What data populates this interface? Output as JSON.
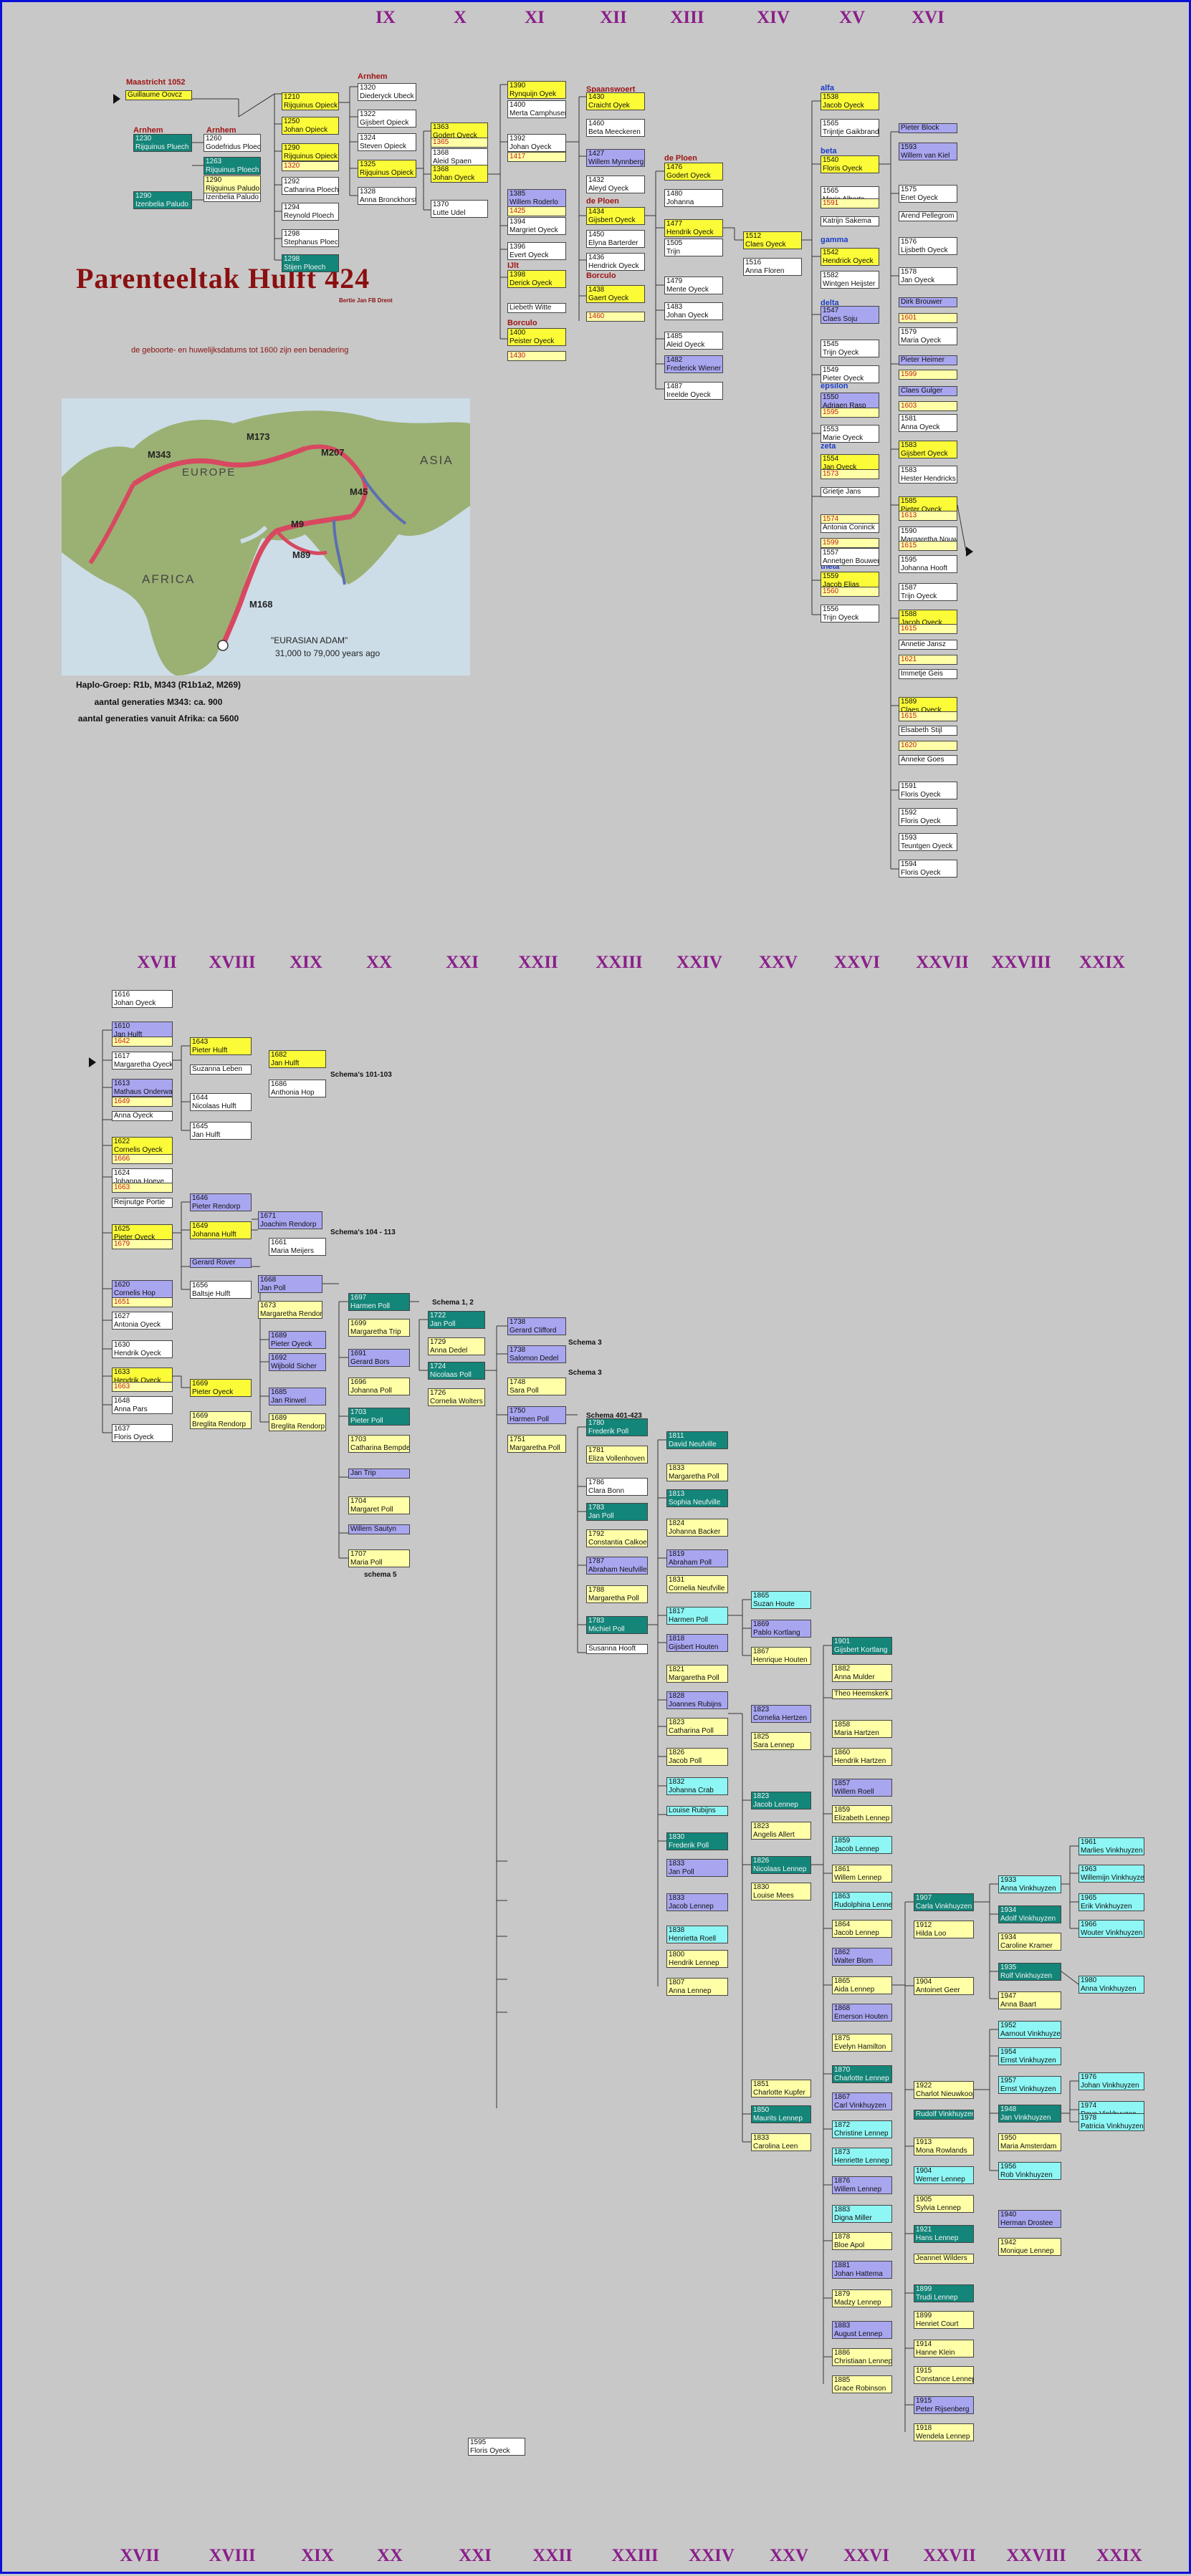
{
  "title": "Parenteeltak Hulft 424",
  "subtitle": "Bertie Jan FB Drent",
  "caption": "de geboorte- en huwelijksdatums tot 1600 zijn een benadering",
  "map": {
    "labels": {
      "europe": "EUROPE",
      "asia": "ASIA",
      "africa": "AFRICA",
      "m343": "M343",
      "m173": "M173",
      "m207": "M207",
      "m45": "M45",
      "m9": "M9",
      "m89": "M89",
      "m168": "M168",
      "adam": "\"EURASIAN ADAM\"",
      "adam_age": "31,000 to 79,000 years ago"
    }
  },
  "info": {
    "line1": "Haplo-Groep: R1b, M343 (R1b1a2, M269)",
    "line2": "aantal generaties M343: ca. 900",
    "line3": "aantal generaties vanuit Afrika: ca 5600"
  },
  "generations_top": [
    "IX",
    "X",
    "XI",
    "XII",
    "XIII",
    "XIV",
    "XV",
    "XVI"
  ],
  "generations_mid": [
    "XVII",
    "XVIII",
    "XIX",
    "XX",
    "XXI",
    "XXII",
    "XXIII",
    "XXIV",
    "XXV",
    "XXVI",
    "XXVII",
    "XXVIII",
    "XXIX"
  ],
  "generations_bottom": [
    "XVII",
    "XVIII",
    "XIX",
    "XX",
    "XXI",
    "XXII",
    "XXIII",
    "XXIV",
    "XXV",
    "XXVI",
    "XXVII",
    "XXVIII",
    "XXIX"
  ],
  "place_labels": {
    "maastricht": "Maastricht 1052",
    "arnhem1": "Arnhem",
    "arnhem2": "Arnhem",
    "arnhem3": "Arnhem",
    "spaanswoert": "Spaanswoert",
    "de_ploen1": "de Ploen",
    "de_ploen2": "de Ploen",
    "ijlt": "IJlt",
    "borculo1": "Borculo",
    "borculo2": "Borculo"
  },
  "greek_labels": {
    "alfa": "alfa",
    "beta": "beta",
    "gamma": "gamma",
    "delta": "delta",
    "epsilon": "epsilon",
    "zeta": "zeta",
    "theta": "theta"
  },
  "schemas": {
    "s1": "Schema's 101-103",
    "s2": "Schema's 104 - 113",
    "s3": "Schema 1, 2",
    "s4": "Schema 3",
    "s5": "Schema 3",
    "s6": "Schema 401-423",
    "s7": "schema 5"
  },
  "boxes_top": [
    {
      "y": "",
      "n": "Guillaume Oovcz"
    },
    {
      "y": "1210",
      "n": "Rijquinus Opieck"
    },
    {
      "y": "1250",
      "n": "Johan Opieck"
    },
    {
      "y": "1290",
      "n": "Rijquinus Opieck"
    },
    {
      "y": "1320",
      "n": ""
    },
    {
      "y": "1230",
      "n": "Rijquinus Pluech"
    },
    {
      "y": "1260",
      "n": "Godefridus Ploech"
    },
    {
      "y": "1263",
      "n": "Rijquinus Ploech"
    },
    {
      "y": "1290",
      "n": "Izenbelia Paludo"
    },
    {
      "y": "1268",
      "n": "Izenbelia Paludo"
    },
    {
      "y": "1290",
      "n": "Rijquinus Paludo"
    },
    {
      "y": "1292",
      "n": "Catharina Ploech"
    },
    {
      "y": "1294",
      "n": "Reynold Ploech"
    },
    {
      "y": "1298",
      "n": "Stephanus Ploech"
    },
    {
      "y": "1298",
      "n": "Stijen Ploech"
    },
    {
      "y": "1320",
      "n": "Diederyck Ubeck"
    },
    {
      "y": "1322",
      "n": "Gijsbert Opieck"
    },
    {
      "y": "1324",
      "n": "Steven Opieck"
    },
    {
      "y": "1325",
      "n": "Rijquinus Opieck"
    },
    {
      "y": "1328",
      "n": "Anna Bronckhorst"
    },
    {
      "y": "1363",
      "n": "Godert Oyeck"
    },
    {
      "y": "1365",
      "n": ""
    },
    {
      "y": "1368",
      "n": "Aleid Spaen"
    },
    {
      "y": "1368",
      "n": "Johan Oyeck"
    },
    {
      "y": "1370",
      "n": "Lutte Udel"
    },
    {
      "y": "1390",
      "n": "Rynquijn Oyek"
    },
    {
      "y": "1400",
      "n": "Merta Camphuser"
    },
    {
      "y": "1417",
      "n": ""
    },
    {
      "y": "1392",
      "n": "Johan Oyeck"
    },
    {
      "y": "1385",
      "n": "Willem Roderlo"
    },
    {
      "y": "1425",
      "n": ""
    },
    {
      "y": "1394",
      "n": "Margriet Oyeck"
    },
    {
      "y": "1396",
      "n": "Evert Oyeck"
    },
    {
      "y": "1398",
      "n": "Derick Oyeck"
    },
    {
      "y": "",
      "n": "Liebeth Witte"
    },
    {
      "y": "1400",
      "n": "Peister Oyeck"
    },
    {
      "y": "1430",
      "n": ""
    },
    {
      "y": "1430",
      "n": "Craicht Oyek"
    },
    {
      "y": "1460",
      "n": "Beta Meeckeren"
    },
    {
      "y": "1427",
      "n": "Willem Mynnberg"
    },
    {
      "y": "1432",
      "n": "Aleyd Oyeck"
    },
    {
      "y": "1434",
      "n": "Gijsbert Oyeck"
    },
    {
      "y": "1450",
      "n": "Elyna Barterder"
    },
    {
      "y": "1436",
      "n": "Hendrick Oyeck"
    },
    {
      "y": "1438",
      "n": "Gaert Oyeck"
    },
    {
      "y": "1460",
      "n": ""
    },
    {
      "y": "1476",
      "n": "Godert Oyeck"
    },
    {
      "y": "1480",
      "n": "Johanna"
    },
    {
      "y": "1477",
      "n": "Hendrik Oyeck"
    },
    {
      "y": "1505",
      "n": "Trijn"
    },
    {
      "y": "1479",
      "n": "Mente Oyeck"
    },
    {
      "y": "1483",
      "n": "Johan Oyeck"
    },
    {
      "y": "1485",
      "n": "Aleid Oyeck"
    },
    {
      "y": "1482",
      "n": "Frederick Wiener"
    },
    {
      "y": "1487",
      "n": "Ireelde Oyeck"
    },
    {
      "y": "1512",
      "n": "Claes Oyeck"
    },
    {
      "y": "1516",
      "n": "Anna Floren"
    },
    {
      "y": "1538",
      "n": "Jacob Oyeck"
    },
    {
      "y": "1565",
      "n": "Trijntje Gaikbrand"
    },
    {
      "y": "1540",
      "n": "Floris Oyeck"
    },
    {
      "y": "1565",
      "n": "Marie Alberts"
    },
    {
      "y": "1591",
      "n": ""
    },
    {
      "y": "",
      "n": "Katrijn Sakema"
    },
    {
      "y": "1542",
      "n": "Hendrick Oyeck"
    },
    {
      "y": "1582",
      "n": "Wintgen Heijster"
    },
    {
      "y": "1547",
      "n": "Claes Soju"
    },
    {
      "y": "1545",
      "n": "Trijn Oyeck"
    },
    {
      "y": "1549",
      "n": "Pieter Oyeck"
    },
    {
      "y": "1550",
      "n": "Adriaen Rasp"
    },
    {
      "y": "1595",
      "n": ""
    },
    {
      "y": "1553",
      "n": "Marie Oyeck"
    },
    {
      "y": "1554",
      "n": "Jan Oyeck"
    },
    {
      "y": "1573",
      "n": ""
    },
    {
      "y": "",
      "n": "Grietje Jans"
    },
    {
      "y": "1574",
      "n": ""
    },
    {
      "y": "",
      "n": "Antonia Coninck"
    },
    {
      "y": "1599",
      "n": ""
    },
    {
      "y": "1557",
      "n": "Annetgen Bouwens"
    },
    {
      "y": "1559",
      "n": "Jacob Elias"
    },
    {
      "y": "1560",
      "n": ""
    },
    {
      "y": "1556",
      "n": "Trijn Oyeck"
    },
    {
      "y": "",
      "n": "Pieter Block"
    },
    {
      "y": "1593",
      "n": "Willem van Kiel"
    },
    {
      "y": "1575",
      "n": "Enet Oyeck"
    },
    {
      "y": "",
      "n": "Arend Pellegrom"
    },
    {
      "y": "1576",
      "n": "Lijsbeth Oyeck"
    },
    {
      "y": "1578",
      "n": "Jan Oyeck"
    },
    {
      "y": "",
      "n": "Dirk Brouwer"
    },
    {
      "y": "1601",
      "n": ""
    },
    {
      "y": "1579",
      "n": "Maria Oyeck"
    },
    {
      "y": "",
      "n": "Pieter Heimer"
    },
    {
      "y": "1599",
      "n": ""
    },
    {
      "y": "",
      "n": "Claes Gulger"
    },
    {
      "y": "1603",
      "n": ""
    },
    {
      "y": "1581",
      "n": "Anna Oyeck"
    },
    {
      "y": "1583",
      "n": "Gijsbert Oyeck"
    },
    {
      "y": "1583",
      "n": "Hester Hendricks"
    },
    {
      "y": "1585",
      "n": "Pieter Oyeck"
    },
    {
      "y": "1613",
      "n": ""
    },
    {
      "y": "1590",
      "n": "Margaretha Nouw"
    },
    {
      "y": "1615",
      "n": ""
    },
    {
      "y": "1595",
      "n": "Johanna Hooft"
    },
    {
      "y": "1587",
      "n": "Trijn Oyeck"
    },
    {
      "y": "1588",
      "n": "Jacob Oyeck"
    },
    {
      "y": "1615",
      "n": ""
    },
    {
      "y": "",
      "n": "Annetie Jansz"
    },
    {
      "y": "1621",
      "n": ""
    },
    {
      "y": "",
      "n": "Immetje Geis"
    },
    {
      "y": "1589",
      "n": "Claes Oyeck"
    },
    {
      "y": "1615",
      "n": ""
    },
    {
      "y": "",
      "n": "Elsabeth Stijl"
    },
    {
      "y": "1620",
      "n": ""
    },
    {
      "y": "",
      "n": "Anneke Goes"
    },
    {
      "y": "1591",
      "n": "Floris Oyeck"
    },
    {
      "y": "1592",
      "n": "Floris Oyeck"
    },
    {
      "y": "1593",
      "n": "Teuntgen Oyeck"
    },
    {
      "y": "1594",
      "n": "Floris Oyeck"
    },
    {
      "y": "1595",
      "n": "Floris Oyeck"
    }
  ],
  "boxes_mid": [
    {
      "y": "1616",
      "n": "Johan Oyeck"
    },
    {
      "y": "1610",
      "n": "Jan Hulft"
    },
    {
      "y": "1642",
      "n": ""
    },
    {
      "y": "1617",
      "n": "Margaretha Oyeck"
    },
    {
      "y": "1613",
      "n": "Mathaus Onderwater"
    },
    {
      "y": "1649",
      "n": ""
    },
    {
      "y": "",
      "n": "Anna Oyeck"
    },
    {
      "y": "1622",
      "n": "Cornelis Oyeck"
    },
    {
      "y": "1666",
      "n": ""
    },
    {
      "y": "1624",
      "n": "Johanna Hoeve"
    },
    {
      "y": "1663",
      "n": ""
    },
    {
      "y": "",
      "n": "Reijnutge Portie"
    },
    {
      "y": "1625",
      "n": "Pieter Oyeck"
    },
    {
      "y": "1679",
      "n": ""
    },
    {
      "y": "1620",
      "n": "Cornelis Hop"
    },
    {
      "y": "1651",
      "n": ""
    },
    {
      "y": "1627",
      "n": "Antonia Oyeck"
    },
    {
      "y": "1630",
      "n": "Hendrik Oyeck"
    },
    {
      "y": "1633",
      "n": "Hendrik Oyeck"
    },
    {
      "y": "1663",
      "n": ""
    },
    {
      "y": "1648",
      "n": "Anna Pars"
    },
    {
      "y": "1637",
      "n": "Floris Oyeck"
    },
    {
      "y": "1643",
      "n": "Pieter Hulft"
    },
    {
      "y": "",
      "n": "Suzanna Leben"
    },
    {
      "y": "1644",
      "n": "Nicolaas Hulft"
    },
    {
      "y": "1645",
      "n": "Jan Hulft"
    },
    {
      "y": "1646",
      "n": "Pieter Rendorp"
    },
    {
      "y": "1649",
      "n": "Johanna Hulft"
    },
    {
      "y": "",
      "n": "Gerard Rover"
    },
    {
      "y": "1656",
      "n": "Baltsje Hulft"
    },
    {
      "y": "1669",
      "n": "Pieter Oyeck"
    },
    {
      "y": "1669",
      "n": "Breglita Rendorp"
    },
    {
      "y": "1682",
      "n": "Jan Hulft"
    },
    {
      "y": "1686",
      "n": "Anthonia Hop"
    },
    {
      "y": "1671",
      "n": "Joachim Rendorp"
    },
    {
      "y": "1661",
      "n": "Maria Meijers"
    },
    {
      "y": "1668",
      "n": "Jan Poll"
    },
    {
      "y": "1673",
      "n": "Margaretha Rendorp"
    },
    {
      "y": "1689",
      "n": "Pieter Oyeck"
    },
    {
      "y": "1692",
      "n": "Wijbold Sicher"
    },
    {
      "y": "1685",
      "n": "Jan Rinwel"
    },
    {
      "y": "1689",
      "n": "Breglita Rendorp"
    },
    {
      "y": "1697",
      "n": "Harmen Poll"
    },
    {
      "y": "1699",
      "n": "Margaretha Trip"
    },
    {
      "y": "1691",
      "n": "Gerard Bors"
    },
    {
      "y": "1696",
      "n": "Johanna Poll"
    },
    {
      "y": "1703",
      "n": "Pieter Poll"
    },
    {
      "y": "1703",
      "n": "Catharina Bempde"
    },
    {
      "y": "",
      "n": "Jan Trip"
    },
    {
      "y": "1704",
      "n": "Margaret Poll"
    },
    {
      "y": "",
      "n": "Willem Sautyn"
    },
    {
      "y": "1707",
      "n": "Maria Poll"
    },
    {
      "y": "1722",
      "n": "Jan Poll"
    },
    {
      "y": "1729",
      "n": "Anna Dedel"
    },
    {
      "y": "1724",
      "n": "Nicolaas Poll"
    },
    {
      "y": "1726",
      "n": "Cornelia Wolters"
    },
    {
      "y": "1738",
      "n": "Gerard Clifford"
    },
    {
      "y": "1738",
      "n": "Salomon Dedel"
    },
    {
      "y": "1748",
      "n": "Sara Poll"
    },
    {
      "y": "1750",
      "n": "Harmen Poll"
    },
    {
      "y": "1751",
      "n": "Margaretha Poll"
    },
    {
      "y": "1780",
      "n": "Frederik Poll"
    },
    {
      "y": "1781",
      "n": "Eliza Vollenhoven"
    },
    {
      "y": "1786",
      "n": "Clara Bonn"
    },
    {
      "y": "1783",
      "n": "Jan Poll"
    },
    {
      "y": "1792",
      "n": "Constantia Calkoen"
    },
    {
      "y": "1787",
      "n": "Abraham Neufville"
    },
    {
      "y": "1788",
      "n": "Margaretha Poll"
    },
    {
      "y": "1783",
      "n": "Michiel Poll"
    },
    {
      "y": "",
      "n": "Susanna Hooft"
    },
    {
      "y": "1811",
      "n": "David Neufville"
    },
    {
      "y": "1833",
      "n": "Margaretha Poll"
    },
    {
      "y": "1813",
      "n": "Sophia Neufville"
    },
    {
      "y": "1824",
      "n": "Johanna Backer"
    },
    {
      "y": "1819",
      "n": "Abraham Poll"
    },
    {
      "y": "1831",
      "n": "Cornelia Neufville"
    },
    {
      "y": "1817",
      "n": "Harmen Poll"
    },
    {
      "y": "1818",
      "n": "Gijsbert Houten"
    },
    {
      "y": "1821",
      "n": "Margaretha Poll"
    },
    {
      "y": "1828",
      "n": "Joannes Rubijns"
    },
    {
      "y": "1823",
      "n": "Catharina Poll"
    },
    {
      "y": "1826",
      "n": "Jacob Poll"
    },
    {
      "y": "1832",
      "n": "Johanna Crab"
    },
    {
      "y": "",
      "n": "Louise Rubijns"
    },
    {
      "y": "1830",
      "n": "Frederik Poll"
    },
    {
      "y": "1833",
      "n": "Jan Poll"
    },
    {
      "y": "1833",
      "n": "Jacob Lennep"
    },
    {
      "y": "1838",
      "n": "Henrietta Roell"
    },
    {
      "y": "1800",
      "n": "Hendrik Lennep"
    },
    {
      "y": "1807",
      "n": "Anna Lennep"
    },
    {
      "y": "1865",
      "n": "Suzan Houte"
    },
    {
      "y": "1869",
      "n": "Pablo Kortlang"
    },
    {
      "y": "1867",
      "n": "Henrique Houten"
    },
    {
      "y": "1823",
      "n": "Cornelia Hertzen"
    },
    {
      "y": "1825",
      "n": "Sara Lennep"
    },
    {
      "y": "1823",
      "n": "Jacob Lennep"
    },
    {
      "y": "1823",
      "n": "Angelis Allert"
    },
    {
      "y": "1826",
      "n": "Nicolaas Lennep"
    },
    {
      "y": "1830",
      "n": "Louise Mees"
    },
    {
      "y": "1851",
      "n": "Charlotte Kupfer"
    },
    {
      "y": "1850",
      "n": "Maurits Lennep"
    },
    {
      "y": "1833",
      "n": "Carolina Leen"
    },
    {
      "y": "1901",
      "n": "Gijsbert Kortlang"
    },
    {
      "y": "1882",
      "n": "Anna Mulder"
    },
    {
      "y": "",
      "n": "Theo Heemskerk"
    },
    {
      "y": "1858",
      "n": "Maria Hartzen"
    },
    {
      "y": "1860",
      "n": "Hendrik Hartzen"
    },
    {
      "y": "1857",
      "n": "Willem Roell"
    },
    {
      "y": "1859",
      "n": "Elizabeth Lennep"
    },
    {
      "y": "1859",
      "n": "Jacob Lennep"
    },
    {
      "y": "1861",
      "n": "Willem Lennep"
    },
    {
      "y": "1863",
      "n": "Rudolphina Lennep"
    },
    {
      "y": "1864",
      "n": "Jacob Lennep"
    },
    {
      "y": "1862",
      "n": "Walter Blom"
    },
    {
      "y": "1865",
      "n": "Aida Lennep"
    },
    {
      "y": "1868",
      "n": "Emerson Houten"
    },
    {
      "y": "1875",
      "n": "Evelyn Hamilton"
    },
    {
      "y": "1870",
      "n": "Charlotte Lennep"
    },
    {
      "y": "1867",
      "n": "Carl Vinkhuyzen"
    },
    {
      "y": "1872",
      "n": "Christine Lennep"
    },
    {
      "y": "1873",
      "n": "Henriette Lennep"
    },
    {
      "y": "1876",
      "n": "Willem Lennep"
    },
    {
      "y": "1883",
      "n": "Digna Miller"
    },
    {
      "y": "1878",
      "n": "Bloe Apol"
    },
    {
      "y": "1881",
      "n": "Johan Hattema"
    },
    {
      "y": "1879",
      "n": "Madzy Lennep"
    },
    {
      "y": "1883",
      "n": "August Lennep"
    },
    {
      "y": "1886",
      "n": "Christiaan Lennep"
    },
    {
      "y": "1885",
      "n": "Grace Robinson"
    },
    {
      "y": "1907",
      "n": "Carla Vinkhuyzen"
    },
    {
      "y": "1912",
      "n": "Hilda Loo"
    },
    {
      "y": "1904",
      "n": "Antoinet Geer"
    },
    {
      "y": "1922",
      "n": "Charlot Nieuwkoop"
    },
    {
      "y": "",
      "n": "Rudolf Vinkhuyzen"
    },
    {
      "y": "1913",
      "n": "Mona Rowlands"
    },
    {
      "y": "1904",
      "n": "Werner Lennep"
    },
    {
      "y": "1905",
      "n": "Sylvia Lennep"
    },
    {
      "y": "1921",
      "n": "Hans Lennep"
    },
    {
      "y": "",
      "n": "Jeannet Wilders"
    },
    {
      "y": "1899",
      "n": "Trudi Lennep"
    },
    {
      "y": "1899",
      "n": "Henriet Court"
    },
    {
      "y": "1914",
      "n": "Hanne Klein"
    },
    {
      "y": "1915",
      "n": "Constance Lennep"
    },
    {
      "y": "1915",
      "n": "Peter Rijsenberg"
    },
    {
      "y": "1918",
      "n": "Wendela Lennep"
    },
    {
      "y": "1933",
      "n": "Anna Vinkhuyzen"
    },
    {
      "y": "1934",
      "n": "Adolf Vinkhuyzen"
    },
    {
      "y": "1934",
      "n": "Caroline Kramer"
    },
    {
      "y": "1935",
      "n": "Rolf Vinkhuyzen"
    },
    {
      "y": "1947",
      "n": "Anna Baart"
    },
    {
      "y": "1952",
      "n": "Aarnout Vinkhuyzen"
    },
    {
      "y": "1954",
      "n": "Ernst Vinkhuyzen"
    },
    {
      "y": "1957",
      "n": "Ernst Vinkhuyzen"
    },
    {
      "y": "1948",
      "n": "Jan Vinkhuyzen"
    },
    {
      "y": "1950",
      "n": "Maria Amsterdam"
    },
    {
      "y": "1956",
      "n": "Rob Vinkhuyzen"
    },
    {
      "y": "1940",
      "n": "Herman Drostee"
    },
    {
      "y": "1942",
      "n": "Monique Lennep"
    },
    {
      "y": "1961",
      "n": "Marlies Vinkhuyzen"
    },
    {
      "y": "1963",
      "n": "Willemijn Vinkhuyzen"
    },
    {
      "y": "1965",
      "n": "Erik Vinkhuyzen"
    },
    {
      "y": "1966",
      "n": "Wouter Vinkhuyzen"
    },
    {
      "y": "1980",
      "n": "Anna Vinkhuyzen"
    },
    {
      "y": "1976",
      "n": "Johan Vinkhuyzen"
    },
    {
      "y": "1974",
      "n": "Dave Vinkhuyzen"
    },
    {
      "y": "1978",
      "n": "Patricia Vinkhuyzen"
    }
  ]
}
